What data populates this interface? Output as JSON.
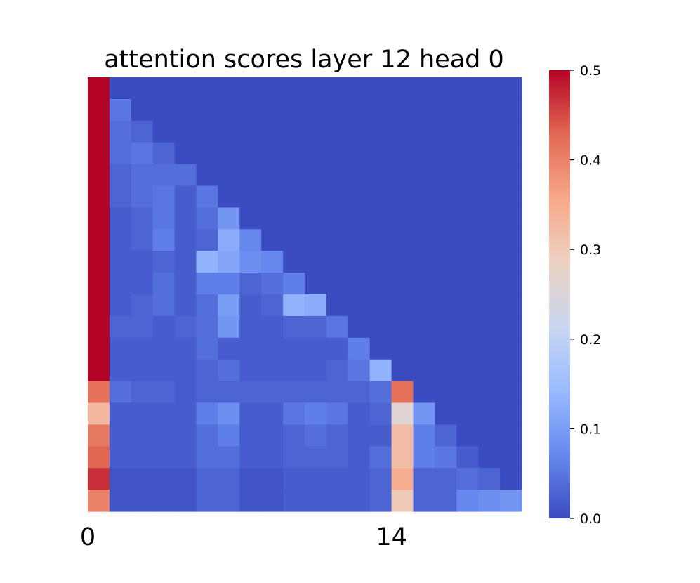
{
  "chart_data": {
    "type": "heatmap",
    "title": "attention scores layer 12 head 0",
    "xlabel": "",
    "ylabel": "",
    "x_tick_labels": [
      {
        "index": 0,
        "label": "0"
      },
      {
        "index": 14,
        "label": "14"
      }
    ],
    "colormap": "coolwarm",
    "colorbar": {
      "range": [
        0.0,
        0.5
      ],
      "ticks": [
        "0.0",
        "0.1",
        "0.2",
        "0.3",
        "0.4",
        "0.5"
      ],
      "stops": [
        "#3b4cc0",
        "#6788ee",
        "#9abbff",
        "#c9d7f0",
        "#edd1c2",
        "#f7a889",
        "#e26952",
        "#b40426"
      ]
    },
    "grid": false,
    "n_rows": 20,
    "n_cols": 20,
    "matrix": [
      [
        1.0
      ],
      [
        0.95,
        0.05
      ],
      [
        0.93,
        0.04,
        0.03
      ],
      [
        0.9,
        0.04,
        0.05,
        0.03
      ],
      [
        0.88,
        0.03,
        0.04,
        0.04,
        0.04
      ],
      [
        0.84,
        0.03,
        0.04,
        0.05,
        0.02,
        0.05
      ],
      [
        0.78,
        0.02,
        0.03,
        0.05,
        0.02,
        0.04,
        0.09
      ],
      [
        0.74,
        0.02,
        0.03,
        0.06,
        0.02,
        0.03,
        0.12,
        0.07
      ],
      [
        0.62,
        0.02,
        0.02,
        0.03,
        0.02,
        0.13,
        0.11,
        0.08,
        0.07
      ],
      [
        0.65,
        0.02,
        0.02,
        0.04,
        0.02,
        0.06,
        0.06,
        0.03,
        0.04,
        0.06
      ],
      [
        0.66,
        0.02,
        0.03,
        0.04,
        0.02,
        0.04,
        0.1,
        0.02,
        0.03,
        0.13,
        0.12
      ],
      [
        0.67,
        0.03,
        0.03,
        0.02,
        0.03,
        0.04,
        0.09,
        0.02,
        0.02,
        0.03,
        0.03,
        0.05
      ],
      [
        0.7,
        0.02,
        0.02,
        0.02,
        0.02,
        0.04,
        0.02,
        0.02,
        0.02,
        0.02,
        0.02,
        0.02,
        0.06
      ],
      [
        0.6,
        0.02,
        0.02,
        0.02,
        0.02,
        0.03,
        0.04,
        0.02,
        0.02,
        0.02,
        0.02,
        0.03,
        0.05,
        0.13
      ],
      [
        0.42,
        0.04,
        0.03,
        0.03,
        0.02,
        0.03,
        0.03,
        0.03,
        0.03,
        0.03,
        0.03,
        0.03,
        0.03,
        0.04,
        0.42
      ],
      [
        0.33,
        0.02,
        0.02,
        0.02,
        0.02,
        0.06,
        0.08,
        0.02,
        0.02,
        0.05,
        0.06,
        0.05,
        0.02,
        0.03,
        0.26,
        0.09
      ],
      [
        0.41,
        0.02,
        0.02,
        0.02,
        0.02,
        0.04,
        0.06,
        0.02,
        0.02,
        0.03,
        0.04,
        0.03,
        0.02,
        0.02,
        0.32,
        0.06,
        0.03
      ],
      [
        0.43,
        0.02,
        0.02,
        0.02,
        0.02,
        0.04,
        0.04,
        0.02,
        0.02,
        0.03,
        0.03,
        0.03,
        0.02,
        0.04,
        0.32,
        0.06,
        0.05,
        0.02
      ],
      [
        0.47,
        0.01,
        0.01,
        0.01,
        0.01,
        0.03,
        0.03,
        0.01,
        0.01,
        0.02,
        0.02,
        0.02,
        0.02,
        0.03,
        0.35,
        0.03,
        0.03,
        0.04,
        0.03
      ],
      [
        0.4,
        0.01,
        0.01,
        0.01,
        0.01,
        0.03,
        0.03,
        0.01,
        0.01,
        0.02,
        0.02,
        0.02,
        0.02,
        0.03,
        0.3,
        0.03,
        0.03,
        0.07,
        0.08,
        0.09
      ]
    ]
  }
}
